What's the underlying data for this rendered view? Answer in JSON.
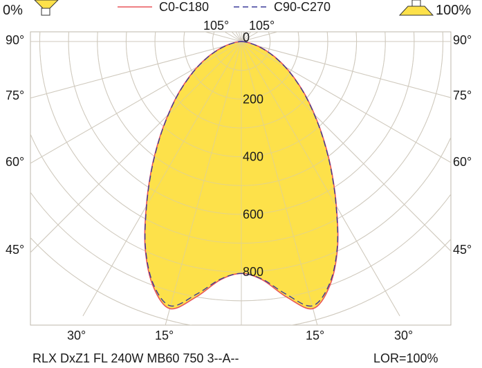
{
  "chart_data": {
    "type": "polar",
    "legend_placement": "top-center",
    "legend": [
      {
        "name": "C0-C180",
        "color": "#e8555a",
        "dash": "solid"
      },
      {
        "name": "C90-C270",
        "color": "#3a3a99",
        "dash": "dashed"
      }
    ],
    "corner_left_label": "0%",
    "corner_right_label": "100%",
    "top_angle_labels": [
      "105°",
      "105°"
    ],
    "side_angle_labels": [
      "90°",
      "75°",
      "60°",
      "45°"
    ],
    "bottom_angle_labels": [
      "30°",
      "15°",
      "15°",
      "30°"
    ],
    "radial_labels": [
      "0",
      "200",
      "400",
      "600",
      "800"
    ],
    "radial_ticks": [
      200,
      400,
      600,
      800
    ],
    "radial_max": 1000,
    "angle_step_deg": 15,
    "footer_left": "RLX DxZ1 FL 240W MB60 750 3--A--",
    "footer_right": "LOR=100%",
    "fill_color": "#fde14a",
    "grid_color": "#cfc9bd",
    "series": [
      {
        "name": "C0-C180",
        "angles_deg": [
          0,
          5,
          10,
          15,
          20,
          25,
          30,
          35,
          40,
          45,
          50,
          55,
          60,
          65,
          70,
          75,
          80,
          85,
          90
        ],
        "values": [
          805,
          830,
          900,
          960,
          900,
          790,
          660,
          545,
          445,
          360,
          290,
          228,
          176,
          130,
          90,
          56,
          28,
          9,
          0
        ]
      },
      {
        "name": "C90-C270",
        "angles_deg": [
          0,
          5,
          10,
          15,
          20,
          25,
          30,
          35,
          40,
          45,
          50,
          55,
          60,
          65,
          70,
          75,
          80,
          85,
          90
        ],
        "values": [
          805,
          828,
          890,
          950,
          895,
          788,
          658,
          543,
          443,
          358,
          288,
          226,
          174,
          128,
          88,
          54,
          27,
          8,
          0
        ]
      }
    ]
  }
}
